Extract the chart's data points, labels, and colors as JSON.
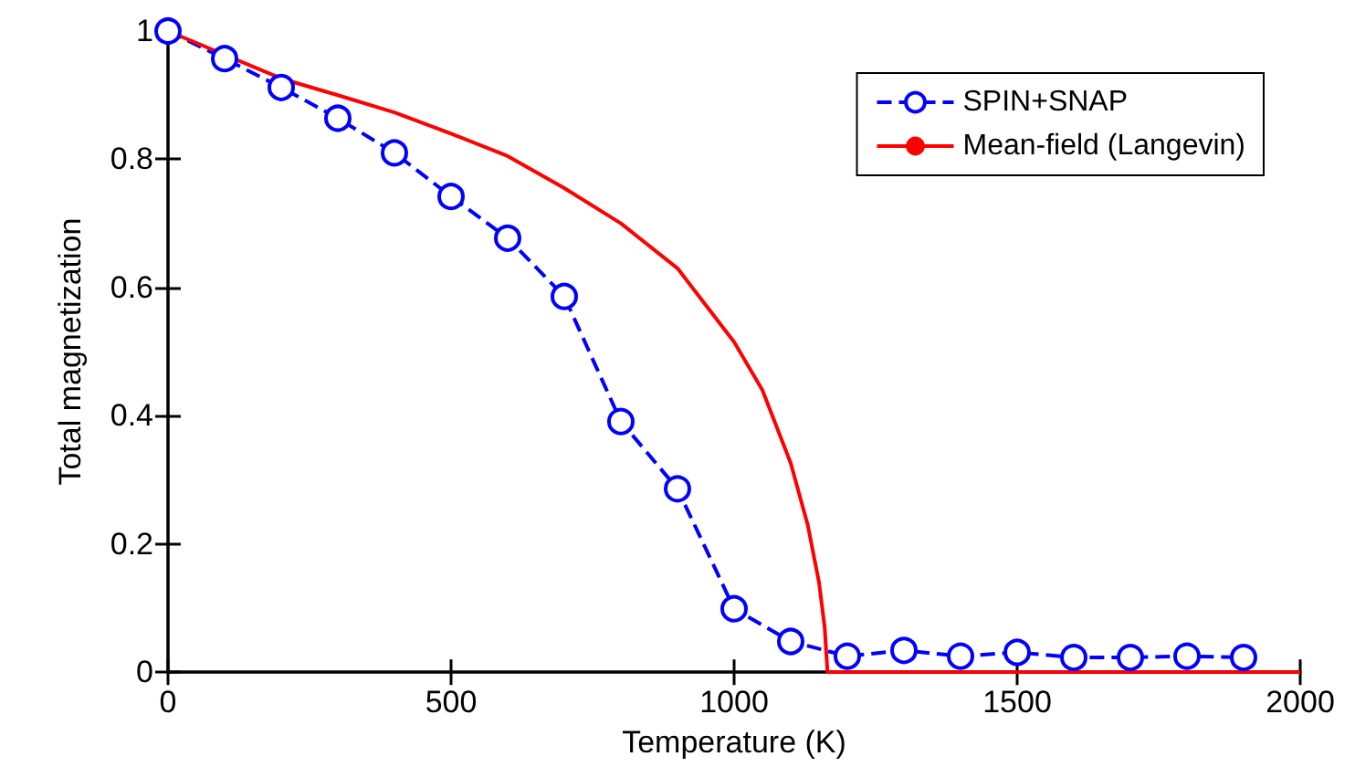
{
  "chart_data": {
    "type": "line",
    "xlabel": "Temperature (K)",
    "ylabel": "Total magnetization",
    "xlim": [
      0,
      2000
    ],
    "xticks": [
      0,
      500,
      1000,
      1500,
      2000
    ],
    "ylim": [
      0,
      1
    ],
    "yticks": [
      0,
      0.2,
      0.4,
      0.6,
      0.8,
      1
    ],
    "grid": false,
    "legend": "top right",
    "series": [
      {
        "name": "SPIN+SNAP",
        "color": "#0000ff",
        "marker": "circle",
        "line_style": "dashed",
        "x": [
          0,
          100,
          200,
          300,
          400,
          500,
          600,
          700,
          800,
          900,
          1000,
          1100,
          1200,
          1300,
          1400,
          1500,
          1600,
          1700,
          1800,
          1900
        ],
        "values": [
          1.0,
          0.957,
          0.912,
          0.864,
          0.81,
          0.742,
          0.677,
          0.586,
          0.391,
          0.286,
          0.099,
          0.048,
          0.025,
          0.034,
          0.025,
          0.031,
          0.023,
          0.023,
          0.025,
          0.023
        ]
      },
      {
        "name": "Mean-field (Langevin)",
        "color": "#ff0000",
        "marker": "none",
        "line_style": "solid",
        "x": [
          0,
          200,
          300,
          400,
          500,
          600,
          700,
          800,
          900,
          1000,
          1050,
          1100,
          1130,
          1150,
          1160,
          1165,
          2000
        ],
        "values": [
          1.0,
          0.926,
          0.9,
          0.873,
          0.84,
          0.805,
          0.755,
          0.7,
          0.63,
          0.515,
          0.44,
          0.326,
          0.23,
          0.14,
          0.07,
          0,
          0
        ]
      }
    ]
  }
}
